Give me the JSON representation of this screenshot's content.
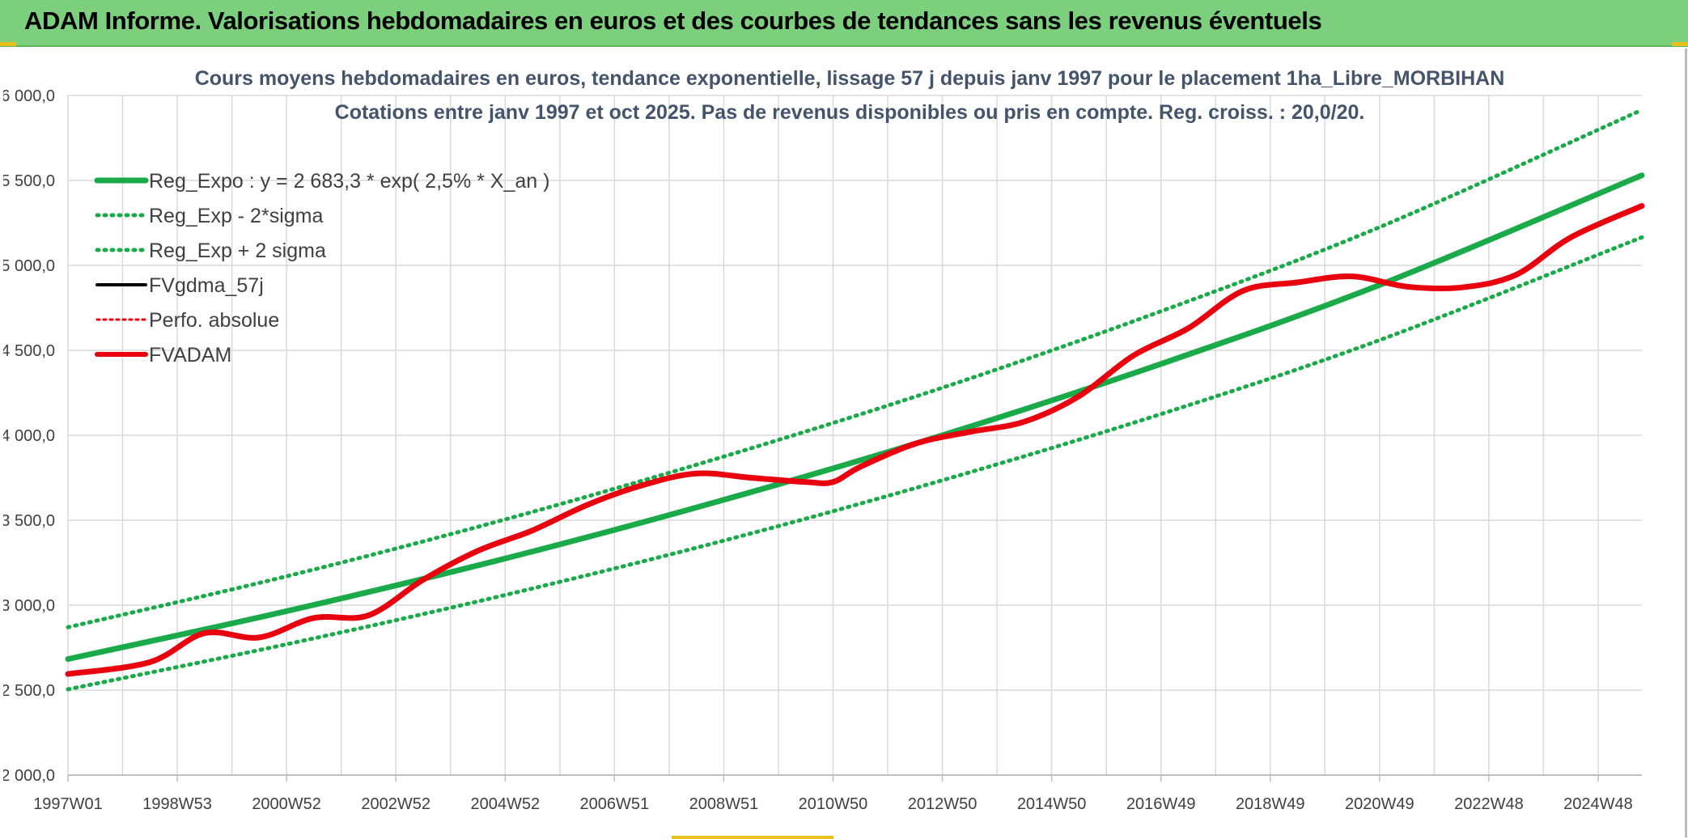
{
  "banner": {
    "title": "ADAM Informe. Valorisations hebdomadaires en euros et des courbes de tendances sans les revenus éventuels"
  },
  "colors": {
    "banner_bg": "#7ccf7c",
    "trend": "#1aaa4a",
    "fvgdma": "#000000",
    "fvadam": "#e8000f",
    "perfo": "#e8000f",
    "grid": "#d9d9d9",
    "title_text": "#44546a"
  },
  "chart_data": {
    "type": "line",
    "title": "Cours moyens hebdomadaires en euros, tendance exponentielle, lissage 57 j depuis janv 1997 pour le placement 1ha_Libre_MORBIHAN",
    "subtitle": "Cotations entre janv 1997 et oct 2025. Pas de revenus disponibles ou pris en compte. Reg. croiss. : 20,0/20.",
    "xlabel": "",
    "ylabel": "",
    "ylim": [
      2000,
      6000
    ],
    "yticks": [
      "2 000,0",
      "2 500,0",
      "3 000,0",
      "3 500,0",
      "4 000,0",
      "4 500,0",
      "5 000,0",
      "5 500,0",
      "6 000,0"
    ],
    "xlim": [
      0,
      28.8
    ],
    "xtick_labels": [
      "1997W01",
      "1998W53",
      "2000W52",
      "2002W52",
      "2004W52",
      "2006W51",
      "2008W51",
      "2010W50",
      "2012W50",
      "2014W50",
      "2016W49",
      "2018W49",
      "2020W49",
      "2022W48",
      "2024W48"
    ],
    "xtick_positions": [
      0,
      2,
      4,
      6,
      8,
      10,
      12,
      14,
      16,
      18,
      20,
      22,
      24,
      26,
      28
    ],
    "grid": true,
    "legend_position": "top-left",
    "legend": [
      {
        "label": "Reg_Expo : y = 2 683,3 * exp( 2,5% *  X_an )",
        "style": "trend-solid"
      },
      {
        "label": "Reg_Exp - 2*sigma",
        "style": "trend-dotted"
      },
      {
        "label": "Reg_Exp + 2 sigma",
        "style": "trend-dotted"
      },
      {
        "label": "FVgdma_57j",
        "style": "black-solid"
      },
      {
        "label": "Perfo. absolue",
        "style": "red-dotted"
      },
      {
        "label": "FVADAM",
        "style": "red-solid"
      }
    ],
    "series": [
      {
        "name": "Reg_Expo : y = 2 683,3 * exp( 2,5% *  X_an )",
        "x": [
          0,
          4,
          8,
          12,
          16,
          20,
          24,
          28.8
        ],
        "values": [
          2683,
          2965,
          3275,
          3620,
          4000,
          4420,
          4885,
          5530
        ]
      },
      {
        "name": "Reg_Exp - 2*sigma",
        "x": [
          0,
          4,
          8,
          12,
          16,
          20,
          24,
          28.8
        ],
        "values": [
          2505,
          2770,
          3060,
          3380,
          3735,
          4125,
          4560,
          5165
        ]
      },
      {
        "name": "Reg_Exp + 2 sigma",
        "x": [
          0,
          4,
          8,
          12,
          16,
          20,
          24,
          28.8
        ],
        "values": [
          2870,
          3170,
          3505,
          3875,
          4280,
          4730,
          5225,
          5915
        ]
      },
      {
        "name": "FVgdma_57j",
        "x": [
          0,
          1.5,
          2.5,
          3.5,
          4.5,
          5.5,
          6.5,
          7.5,
          8.5,
          9.5,
          10.5,
          11.5,
          12.5,
          13.5,
          14.0,
          14.5,
          15.5,
          16.5,
          17.5,
          18.5,
          19.5,
          20.5,
          21.5,
          22.5,
          23.5,
          24.5,
          25.5,
          26.5,
          27.5,
          28.8
        ],
        "values": [
          2595,
          2670,
          2830,
          2810,
          2930,
          2945,
          3150,
          3320,
          3440,
          3590,
          3705,
          3775,
          3750,
          3725,
          3725,
          3815,
          3950,
          4020,
          4080,
          4230,
          4470,
          4630,
          4850,
          4900,
          4935,
          4875,
          4870,
          4945,
          5165,
          5350
        ]
      },
      {
        "name": "FVADAM",
        "x": [
          0,
          1.5,
          2.5,
          3.5,
          4.5,
          5.5,
          6.5,
          7.5,
          8.5,
          9.5,
          10.5,
          11.5,
          12.5,
          13.5,
          14.0,
          14.5,
          15.5,
          16.5,
          17.5,
          18.5,
          19.5,
          20.5,
          21.5,
          22.5,
          23.5,
          24.5,
          25.5,
          26.5,
          27.5,
          28.8
        ],
        "values": [
          2595,
          2665,
          2835,
          2810,
          2925,
          2940,
          3150,
          3320,
          3440,
          3590,
          3705,
          3775,
          3750,
          3725,
          3725,
          3815,
          3950,
          4020,
          4080,
          4230,
          4470,
          4630,
          4850,
          4900,
          4935,
          4875,
          4870,
          4945,
          5165,
          5350
        ]
      }
    ]
  }
}
